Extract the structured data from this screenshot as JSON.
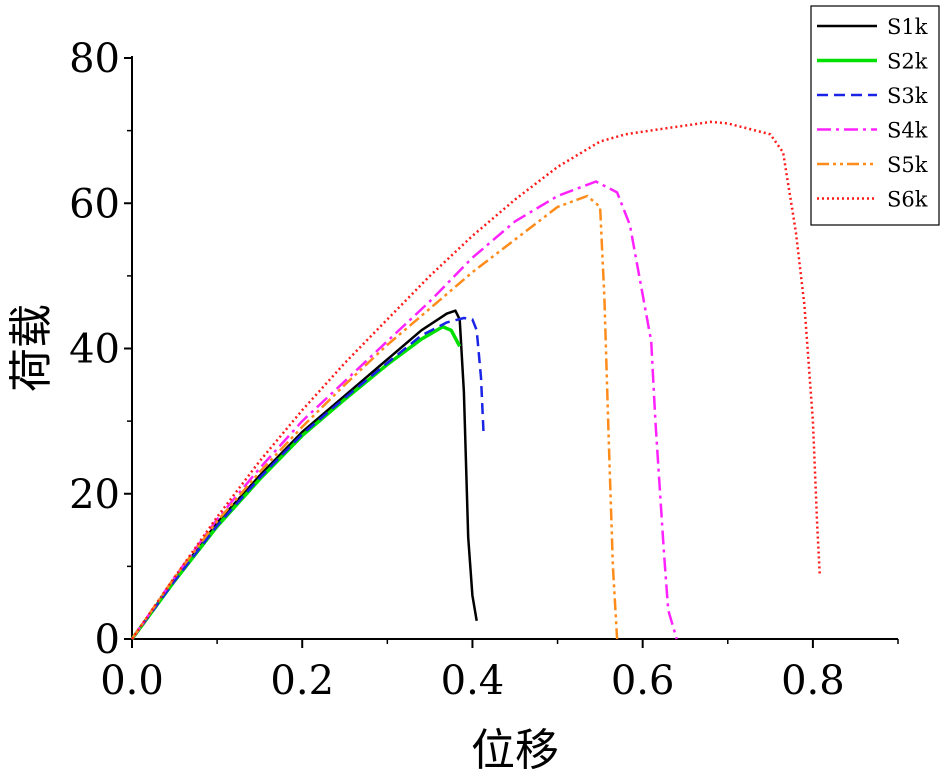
{
  "chart_data": {
    "type": "line",
    "title": "",
    "xlabel": "位移",
    "ylabel": "荷载",
    "xlim": [
      0,
      0.9
    ],
    "ylim": [
      0,
      80
    ],
    "xticks": [
      0.0,
      0.2,
      0.4,
      0.6,
      0.8
    ],
    "xtick_labels": [
      "0.0",
      "0.2",
      "0.4",
      "0.6",
      "0.8"
    ],
    "yticks": [
      0,
      20,
      40,
      60,
      80
    ],
    "ytick_labels": [
      "0",
      "20",
      "40",
      "60",
      "80"
    ],
    "grid": false,
    "legend_position": "top-right",
    "series": [
      {
        "name": "S1k",
        "color": "#000000",
        "dash": "solid",
        "x": [
          0,
          0.05,
          0.1,
          0.15,
          0.2,
          0.25,
          0.3,
          0.34,
          0.37,
          0.38,
          0.385,
          0.39,
          0.395,
          0.4,
          0.405
        ],
        "y": [
          0,
          8.2,
          16,
          22.5,
          28.5,
          33.5,
          38.5,
          42.5,
          44.8,
          45.2,
          44.0,
          34.0,
          14.0,
          6.0,
          2.5
        ]
      },
      {
        "name": "S2k",
        "color": "#00e000",
        "dash": "solid",
        "x": [
          0,
          0.05,
          0.1,
          0.15,
          0.2,
          0.25,
          0.3,
          0.34,
          0.365,
          0.375,
          0.385
        ],
        "y": [
          0,
          8.0,
          15.5,
          22.0,
          28.0,
          33.0,
          37.8,
          41.3,
          43.0,
          42.5,
          40.3
        ]
      },
      {
        "name": "S3k",
        "color": "#1a24e6",
        "dash": "dash",
        "x": [
          0,
          0.05,
          0.1,
          0.15,
          0.2,
          0.25,
          0.3,
          0.34,
          0.37,
          0.39,
          0.4,
          0.405,
          0.41,
          0.413
        ],
        "y": [
          0,
          8.0,
          15.6,
          22.2,
          28.2,
          33.2,
          38.0,
          41.8,
          43.6,
          44.2,
          44.0,
          42.5,
          36.0,
          28.5
        ]
      },
      {
        "name": "S4k",
        "color": "#ff22ff",
        "dash": "dashdot",
        "x": [
          0,
          0.05,
          0.1,
          0.15,
          0.2,
          0.25,
          0.3,
          0.35,
          0.4,
          0.45,
          0.5,
          0.545,
          0.57,
          0.585,
          0.61,
          0.615,
          0.625,
          0.63,
          0.64
        ],
        "y": [
          0,
          8.5,
          16.5,
          23.5,
          30.0,
          35.5,
          41.0,
          46.5,
          52.5,
          57.5,
          61.0,
          63.0,
          61.5,
          57.0,
          41.0,
          30.0,
          12.0,
          4.0,
          0.0
        ]
      },
      {
        "name": "S5k",
        "color": "#ff8c1a",
        "dash": "dashdotdot",
        "x": [
          0,
          0.05,
          0.1,
          0.15,
          0.2,
          0.25,
          0.3,
          0.35,
          0.4,
          0.45,
          0.5,
          0.535,
          0.55,
          0.555,
          0.56,
          0.565,
          0.57
        ],
        "y": [
          0,
          8.5,
          16.2,
          23.0,
          29.2,
          35.0,
          40.5,
          45.5,
          50.5,
          55.0,
          59.5,
          61.0,
          59.5,
          47.0,
          28.0,
          10.0,
          0.0
        ]
      },
      {
        "name": "S6k",
        "color": "#ff1a1a",
        "dash": "dot",
        "x": [
          0,
          0.05,
          0.1,
          0.15,
          0.2,
          0.25,
          0.3,
          0.35,
          0.4,
          0.45,
          0.5,
          0.55,
          0.58,
          0.62,
          0.68,
          0.7,
          0.75,
          0.765,
          0.78,
          0.79,
          0.8,
          0.805,
          0.808
        ],
        "y": [
          0,
          8.5,
          16.8,
          24.5,
          31.5,
          38.0,
          44.0,
          50.0,
          55.5,
          60.5,
          65.0,
          68.5,
          69.5,
          70.2,
          71.2,
          71.0,
          69.5,
          67.0,
          56.0,
          46.0,
          30.0,
          16.0,
          9.0
        ]
      }
    ]
  }
}
